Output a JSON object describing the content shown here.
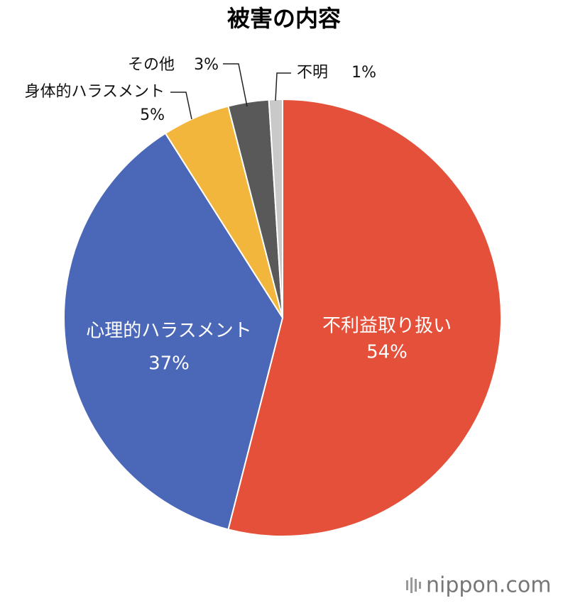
{
  "chart_data": {
    "type": "pie",
    "title": "被害の内容",
    "categories": [
      "不利益取り扱い",
      "心理的ハラスメント",
      "身体的ハラスメント",
      "その他",
      "不明"
    ],
    "values": [
      54,
      37,
      5,
      3,
      1
    ],
    "value_labels": [
      "54%",
      "37%",
      "5%",
      "3%",
      "1%"
    ],
    "colors": [
      "#e4503a",
      "#4a67b8",
      "#f2b63c",
      "#595959",
      "#c9c9c9"
    ],
    "watermark": "nippon.com"
  }
}
